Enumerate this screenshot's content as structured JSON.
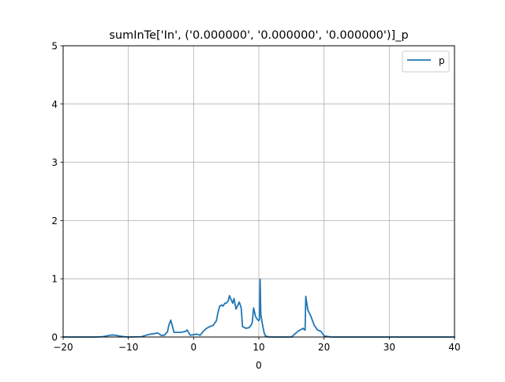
{
  "chart_data": {
    "type": "line",
    "title": "sumInTe['In', ('0.000000', '0.000000', '0.000000')]_p",
    "xlabel": "0",
    "ylabel": "",
    "xlim": [
      -20,
      40
    ],
    "ylim": [
      0,
      5
    ],
    "x_ticks": [
      -20,
      -10,
      0,
      10,
      20,
      30,
      40
    ],
    "x_tick_labels": [
      "−20",
      "−10",
      "0",
      "10",
      "20",
      "30",
      "40"
    ],
    "y_ticks": [
      0,
      1,
      2,
      3,
      4,
      5
    ],
    "y_tick_labels": [
      "0",
      "1",
      "2",
      "3",
      "4",
      "5"
    ],
    "grid": true,
    "legend_position": "top-right",
    "colors": {
      "series": "#1f77b4",
      "grid": "#b0b0b0",
      "axes": "#000000"
    },
    "series": [
      {
        "name": "p",
        "x": [
          -20,
          -15,
          -14,
          -13,
          -12.5,
          -12,
          -11,
          -10,
          -8,
          -7,
          -6,
          -5.5,
          -5,
          -4.5,
          -4,
          -3.8,
          -3.5,
          -3,
          -2,
          -1.5,
          -1.2,
          -1,
          -0.5,
          0,
          0.5,
          1,
          1.5,
          2,
          2.5,
          3,
          3.5,
          3.7,
          4,
          4.3,
          4.5,
          4.8,
          5,
          5.3,
          5.5,
          5.8,
          6,
          6.2,
          6.5,
          6.8,
          7,
          7.3,
          7.5,
          8,
          8.5,
          8.8,
          9,
          9.2,
          9.5,
          9.8,
          10,
          10.1,
          10.2,
          10.3,
          10.5,
          10.8,
          11,
          11.5,
          12,
          13,
          14,
          15,
          15.5,
          16,
          16.5,
          16.8,
          17,
          17.1,
          17.2,
          17.5,
          18,
          18.5,
          19,
          19.5,
          20,
          21,
          25,
          30,
          35,
          40
        ],
        "y": [
          0.0,
          0.0,
          0.005,
          0.025,
          0.035,
          0.03,
          0.01,
          0.0,
          0.005,
          0.04,
          0.06,
          0.07,
          0.03,
          0.03,
          0.09,
          0.2,
          0.29,
          0.08,
          0.08,
          0.09,
          0.1,
          0.12,
          0.03,
          0.04,
          0.05,
          0.03,
          0.1,
          0.15,
          0.18,
          0.2,
          0.28,
          0.4,
          0.53,
          0.55,
          0.53,
          0.58,
          0.58,
          0.62,
          0.71,
          0.63,
          0.58,
          0.66,
          0.48,
          0.55,
          0.6,
          0.5,
          0.18,
          0.15,
          0.16,
          0.2,
          0.25,
          0.5,
          0.35,
          0.3,
          0.28,
          0.3,
          0.99,
          0.4,
          0.25,
          0.08,
          0.02,
          0.0,
          0.0,
          0.0,
          0.0,
          0.0,
          0.05,
          0.1,
          0.13,
          0.15,
          0.12,
          0.12,
          0.7,
          0.47,
          0.35,
          0.2,
          0.12,
          0.1,
          0.02,
          0.0,
          0.0,
          0.0,
          0.0,
          0.0
        ]
      }
    ]
  }
}
